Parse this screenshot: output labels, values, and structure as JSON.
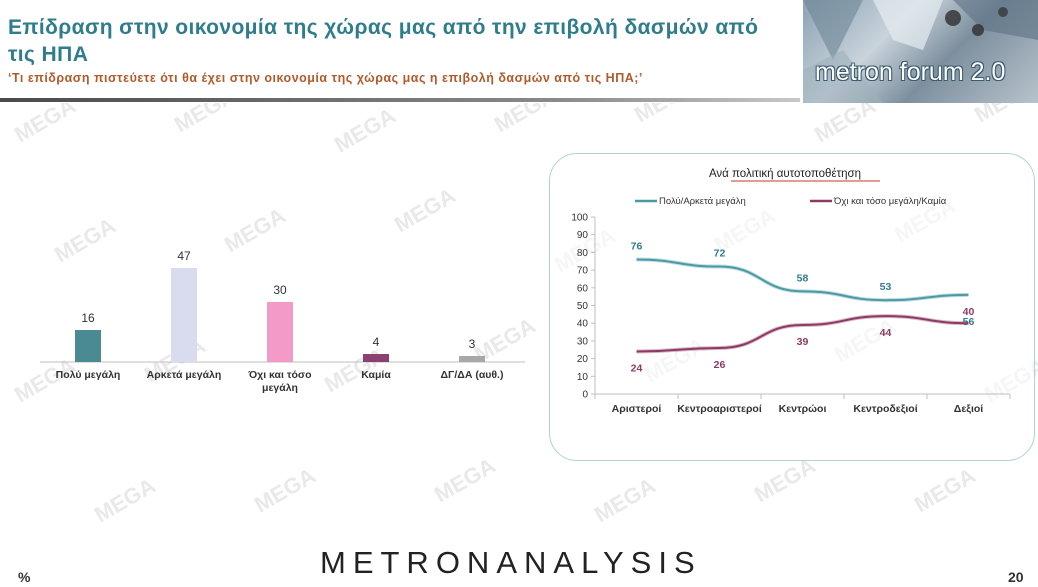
{
  "header": {
    "title": "Επίδραση στην οικονομία της χώρας μας από την  επιβολή δασμών από τις ΗΠΑ",
    "subtitle": "‘Τι επίδραση πιστεύετε ότι θα έχει στην οικονομία της χώρας μας η επιβολή δασμών από τις ΗΠΑ;’",
    "logo_text": "metron forum 2.0"
  },
  "watermark_text": "MEGA",
  "footer": {
    "brand": "METRONANALYSIS",
    "unit": "%",
    "page_number": "20"
  },
  "colors": {
    "title": "#2e7d8c",
    "subtitle": "#b35a2a",
    "teal_line": "#4a9aa5",
    "purple_line": "#8e3a63",
    "panel_border": "#a9d5d6"
  },
  "chart_data": [
    {
      "type": "bar",
      "categories": [
        "Πολύ μεγάλη",
        "Αρκετά μεγάλη",
        "Όχι και τόσο μεγάλη",
        "Καμία",
        "ΔΓ/ΔΑ (αυθ.)"
      ],
      "values": [
        16,
        47,
        30,
        4,
        3
      ],
      "colors": [
        "#4a8a92",
        "#d9dcef",
        "#f49ac9",
        "#8b4070",
        "#a8a8a8"
      ],
      "ylim": [
        0,
        50
      ]
    },
    {
      "type": "line",
      "title": "Ανά πολιτική αυτοτοποθέτηση",
      "categories": [
        "Αριστεροί",
        "Κεντροαριστεροί",
        "Κεντρώοι",
        "Κεντροδεξιοί",
        "Δεξιοί"
      ],
      "series": [
        {
          "name": "Πολύ/Αρκετά μεγάλη",
          "color": "#4a9aa5",
          "label_color": "#2e7d8c",
          "values": [
            76,
            72,
            58,
            53,
            56
          ]
        },
        {
          "name": "Όχι και τόσο μεγάλη/Καμία",
          "color": "#8e3a63",
          "label_color": "#8e3a63",
          "values": [
            24,
            26,
            39,
            44,
            40
          ]
        }
      ],
      "yticks": [
        0,
        10,
        20,
        30,
        40,
        50,
        60,
        70,
        80,
        90,
        100
      ],
      "ylim": [
        0,
        100
      ],
      "grid": false,
      "legend": "top"
    }
  ]
}
